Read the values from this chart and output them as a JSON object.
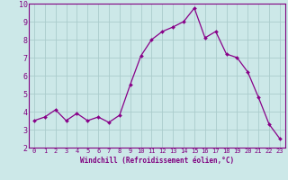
{
  "x": [
    0,
    1,
    2,
    3,
    4,
    5,
    6,
    7,
    8,
    9,
    10,
    11,
    12,
    13,
    14,
    15,
    16,
    17,
    18,
    19,
    20,
    21,
    22,
    23
  ],
  "y": [
    3.5,
    3.7,
    4.1,
    3.5,
    3.9,
    3.5,
    3.7,
    3.4,
    3.8,
    5.5,
    7.1,
    8.0,
    8.45,
    8.7,
    9.0,
    9.75,
    8.1,
    8.45,
    7.2,
    7.0,
    6.2,
    4.8,
    3.3,
    2.5
  ],
  "line_color": "#880088",
  "marker_color": "#880088",
  "bg_color": "#cce8e8",
  "grid_color": "#aacccc",
  "xlabel": "Windchill (Refroidissement éolien,°C)",
  "ylabel": "",
  "xlim": [
    -0.5,
    23.5
  ],
  "ylim": [
    2,
    10
  ],
  "yticks": [
    2,
    3,
    4,
    5,
    6,
    7,
    8,
    9,
    10
  ],
  "xticks": [
    0,
    1,
    2,
    3,
    4,
    5,
    6,
    7,
    8,
    9,
    10,
    11,
    12,
    13,
    14,
    15,
    16,
    17,
    18,
    19,
    20,
    21,
    22,
    23
  ],
  "title_color": "#800080",
  "axis_color": "#800080",
  "spine_color": "#800080",
  "font_family": "monospace",
  "xlabel_fontsize": 5.5,
  "tick_fontsize_x": 5.0,
  "tick_fontsize_y": 6.0
}
